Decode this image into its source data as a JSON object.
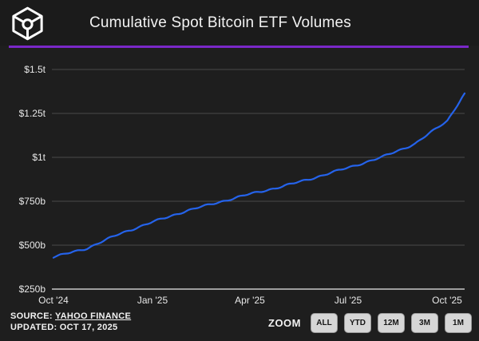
{
  "header": {
    "title": "Cumulative Spot Bitcoin ETF Volumes",
    "logo": "the-block-cube-logo"
  },
  "colors": {
    "background": "#1e1e1e",
    "header_bg": "#1b1b1b",
    "accent_purple": "#7a28c8",
    "line_blue": "#2563eb",
    "grid": "#4a4a4a",
    "axis": "#c9c9c9",
    "button_bg": "#d6d6d6",
    "text": "#f2f2f2"
  },
  "footer": {
    "source_label": "SOURCE:",
    "source_value": "YAHOO FINANCE",
    "updated_label": "UPDATED:",
    "updated_value": "OCT 17, 2025",
    "zoom": {
      "label": "ZOOM",
      "buttons": [
        "ALL",
        "YTD",
        "12M",
        "3M",
        "1M"
      ]
    }
  },
  "chart_data": {
    "type": "line",
    "title": "Cumulative Spot Bitcoin ETF Volumes",
    "unit": "USD billions (cumulative volume)",
    "ylim": [
      250,
      1500
    ],
    "grid": true,
    "legend": false,
    "y_ticks": [
      {
        "label": "$1.5t",
        "value": 1500
      },
      {
        "label": "$1.25t",
        "value": 1250
      },
      {
        "label": "$1t",
        "value": 1000
      },
      {
        "label": "$750b",
        "value": 750
      },
      {
        "label": "$500b",
        "value": 500
      },
      {
        "label": "$250b",
        "value": 250
      }
    ],
    "x_ticks": [
      {
        "label": "Oct '24",
        "day": 0
      },
      {
        "label": "Jan '25",
        "day": 92
      },
      {
        "label": "Apr '25",
        "day": 182
      },
      {
        "label": "Jul '25",
        "day": 273
      },
      {
        "label": "Oct '25",
        "day": 365
      }
    ],
    "points": [
      {
        "date": "Oct '24",
        "day": 0,
        "value": 432
      },
      {
        "date": "Nov '24",
        "day": 31,
        "value": 482
      },
      {
        "date": "Dec '24",
        "day": 61,
        "value": 564
      },
      {
        "date": "Jan '25",
        "day": 92,
        "value": 632
      },
      {
        "date": "Feb '25",
        "day": 123,
        "value": 695
      },
      {
        "date": "Mar '25",
        "day": 151,
        "value": 741
      },
      {
        "date": "Apr '25",
        "day": 182,
        "value": 791
      },
      {
        "date": "May '25",
        "day": 212,
        "value": 834
      },
      {
        "date": "Jun '25",
        "day": 243,
        "value": 886
      },
      {
        "date": "Jul '25",
        "day": 273,
        "value": 941
      },
      {
        "date": "Aug '25",
        "day": 304,
        "value": 1000
      },
      {
        "date": "Sep '25",
        "day": 335,
        "value": 1077
      },
      {
        "date": "Oct '25",
        "day": 365,
        "value": 1209
      },
      {
        "date": "Oct 17 '25",
        "day": 381,
        "value": 1364
      }
    ]
  }
}
